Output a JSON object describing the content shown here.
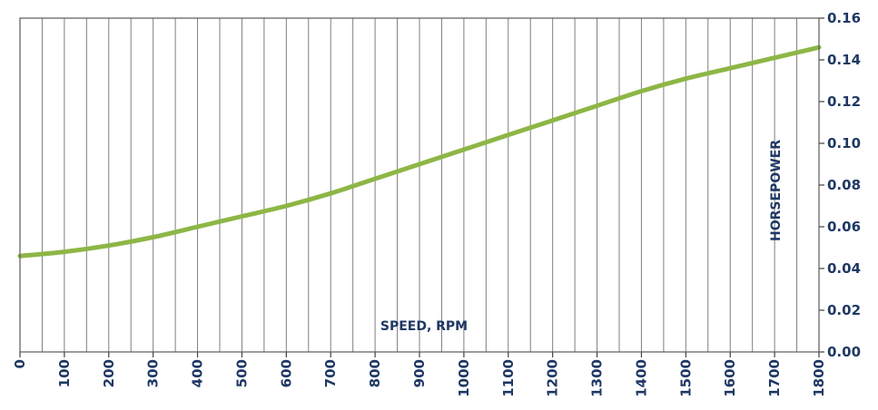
{
  "chart_data": {
    "type": "line",
    "xlabel": "SPEED, RPM",
    "ylabel": "HORSEPOWER",
    "xlim": [
      0,
      1800
    ],
    "ylim": [
      0,
      0.16
    ],
    "x_ticks": [
      "0",
      "100",
      "200",
      "300",
      "400",
      "500",
      "600",
      "700",
      "800",
      "900",
      "1000",
      "1100",
      "1200",
      "1300",
      "1400",
      "1500",
      "1600",
      "1700",
      "1800"
    ],
    "y_ticks": [
      "0.00",
      "0.02",
      "0.04",
      "0.06",
      "0.08",
      "0.10",
      "0.12",
      "0.14",
      "0.16"
    ],
    "grid_x_step": 50,
    "grid_y": false,
    "y_axis_side": "right",
    "series": [
      {
        "color": "#8db646",
        "x": [
          0,
          100,
          200,
          300,
          400,
          500,
          600,
          700,
          800,
          900,
          1000,
          1100,
          1200,
          1300,
          1400,
          1500,
          1600,
          1700,
          1800
        ],
        "y": [
          0.046,
          0.048,
          0.051,
          0.055,
          0.06,
          0.065,
          0.07,
          0.076,
          0.083,
          0.09,
          0.097,
          0.104,
          0.111,
          0.118,
          0.125,
          0.131,
          0.136,
          0.141,
          0.146
        ]
      }
    ]
  }
}
